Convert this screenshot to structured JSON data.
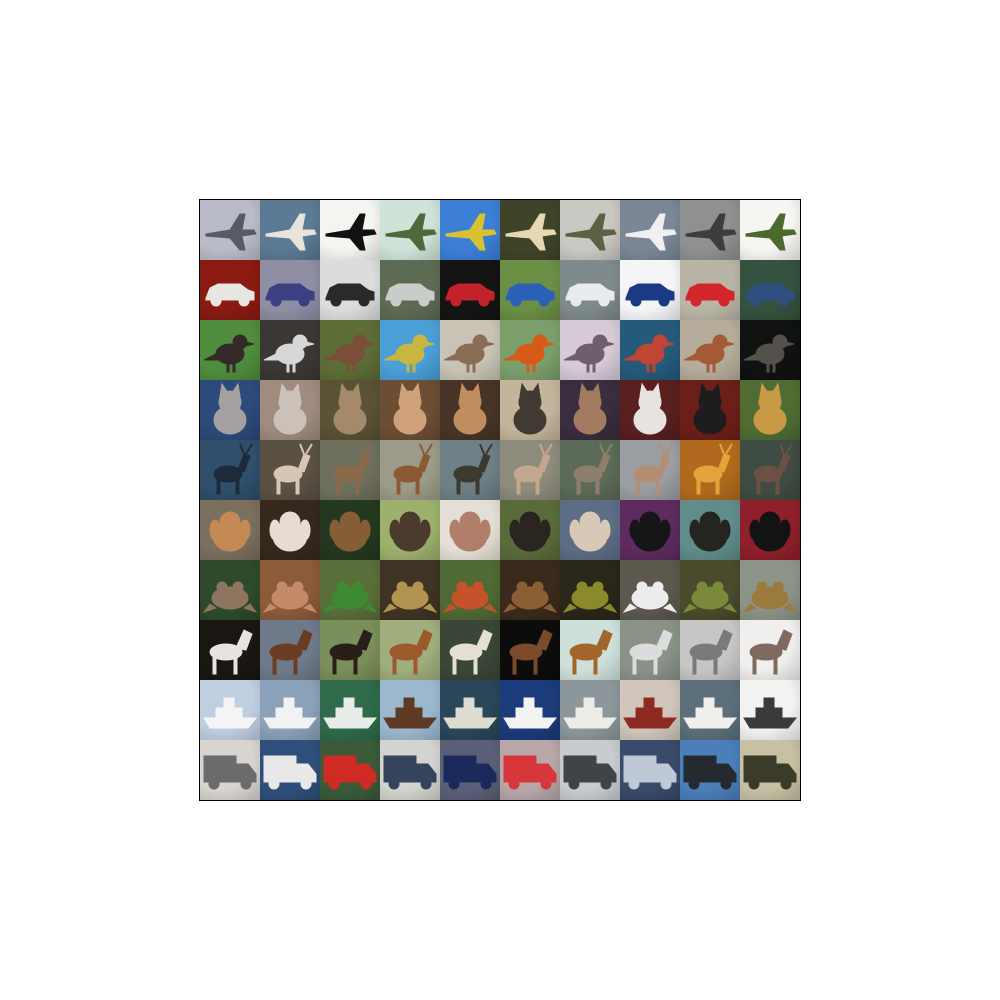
{
  "mosaic": {
    "rows": [
      {
        "label": "airplane",
        "tiles": [
          {
            "bg": "#b9bcc8",
            "fg": "#5a5a62",
            "icon": "airplane-icon"
          },
          {
            "bg": "#5b7a93",
            "fg": "#e8e4da",
            "icon": "airplane-icon"
          },
          {
            "bg": "#f3f5f0",
            "fg": "#111111",
            "icon": "airplane-icon"
          },
          {
            "bg": "#cfe3d8",
            "fg": "#4f6a3a",
            "icon": "airplane-icon"
          },
          {
            "bg": "#3d7fd6",
            "fg": "#d7c331",
            "icon": "airplane-icon"
          },
          {
            "bg": "#3f4428",
            "fg": "#e6d7b5",
            "icon": "airplane-icon"
          },
          {
            "bg": "#c9c8c2",
            "fg": "#5e6046",
            "icon": "airplane-icon"
          },
          {
            "bg": "#7b8796",
            "fg": "#f0f0f0",
            "icon": "airplane-icon"
          },
          {
            "bg": "#8e9091",
            "fg": "#3c3e3e",
            "icon": "airplane-icon"
          },
          {
            "bg": "#f7f5f1",
            "fg": "#4b6a2e",
            "icon": "airplane-icon"
          }
        ]
      },
      {
        "label": "automobile",
        "tiles": [
          {
            "bg": "#8a1a12",
            "fg": "#e8e6e2",
            "icon": "car-icon"
          },
          {
            "bg": "#8e8ea4",
            "fg": "#3d3f83",
            "icon": "car-icon"
          },
          {
            "bg": "#dcdcdc",
            "fg": "#2a2a2a",
            "icon": "car-icon"
          },
          {
            "bg": "#5d6b55",
            "fg": "#c9ccc8",
            "icon": "car-icon"
          },
          {
            "bg": "#141414",
            "fg": "#c3222b",
            "icon": "car-icon"
          },
          {
            "bg": "#6b8f45",
            "fg": "#2b60b8",
            "icon": "car-icon"
          },
          {
            "bg": "#7f8a8c",
            "fg": "#e8ecf0",
            "icon": "car-icon"
          },
          {
            "bg": "#f5f5f7",
            "fg": "#1b3a84",
            "icon": "car-icon"
          },
          {
            "bg": "#b9b5a6",
            "fg": "#d3262b",
            "icon": "car-icon"
          },
          {
            "bg": "#35523e",
            "fg": "#2f4f7e",
            "icon": "car-icon"
          }
        ]
      },
      {
        "label": "bird",
        "tiles": [
          {
            "bg": "#4f8d3d",
            "fg": "#352a29",
            "icon": "bird-icon"
          },
          {
            "bg": "#3b3734",
            "fg": "#d7d7d7",
            "icon": "bird-icon"
          },
          {
            "bg": "#5d6d36",
            "fg": "#7a4e39",
            "icon": "bird-icon"
          },
          {
            "bg": "#4a9fd7",
            "fg": "#c8b640",
            "icon": "bird-icon"
          },
          {
            "bg": "#c9c3b5",
            "fg": "#8a6d55",
            "icon": "bird-icon"
          },
          {
            "bg": "#7b9f6b",
            "fg": "#d75a18",
            "icon": "bird-icon"
          },
          {
            "bg": "#d6c9d8",
            "fg": "#6f5f6e",
            "icon": "bird-icon"
          },
          {
            "bg": "#265a7b",
            "fg": "#bf4535",
            "icon": "bird-icon"
          },
          {
            "bg": "#b5ac9b",
            "fg": "#a45a34",
            "icon": "bird-icon"
          },
          {
            "bg": "#0f1210",
            "fg": "#54504a",
            "icon": "bird-icon"
          }
        ]
      },
      {
        "label": "cat",
        "tiles": [
          {
            "bg": "#2c4a7a",
            "fg": "#a5a1a0",
            "icon": "cat-icon"
          },
          {
            "bg": "#9f8c7e",
            "fg": "#ccc1b9",
            "icon": "cat-icon"
          },
          {
            "bg": "#5a5235",
            "fg": "#a48a6b",
            "icon": "cat-icon"
          },
          {
            "bg": "#6b4e33",
            "fg": "#d0a27a",
            "icon": "cat-icon"
          },
          {
            "bg": "#473426",
            "fg": "#c08d5f",
            "icon": "cat-icon"
          },
          {
            "bg": "#c4b49c",
            "fg": "#413a33",
            "icon": "cat-icon"
          },
          {
            "bg": "#3a2d3e",
            "fg": "#a37b60",
            "icon": "cat-icon"
          },
          {
            "bg": "#5a1f1f",
            "fg": "#e8e2e0",
            "icon": "cat-icon"
          },
          {
            "bg": "#6c1f19",
            "fg": "#1e1c1d",
            "icon": "cat-icon"
          },
          {
            "bg": "#4f6d33",
            "fg": "#c99a45",
            "icon": "cat-icon"
          }
        ]
      },
      {
        "label": "deer",
        "tiles": [
          {
            "bg": "#2f4f6c",
            "fg": "#1c2a3b",
            "icon": "deer-icon"
          },
          {
            "bg": "#5a5144",
            "fg": "#d8c6b4",
            "icon": "deer-icon"
          },
          {
            "bg": "#6f6f5d",
            "fg": "#8b6a4c",
            "icon": "deer-icon"
          },
          {
            "bg": "#9c9a88",
            "fg": "#8a5b33",
            "icon": "deer-icon"
          },
          {
            "bg": "#6e7f86",
            "fg": "#3c3a2f",
            "icon": "deer-icon"
          },
          {
            "bg": "#8d8b7c",
            "fg": "#c4a68e",
            "icon": "deer-icon"
          },
          {
            "bg": "#5c6a58",
            "fg": "#8e7e6c",
            "icon": "deer-icon"
          },
          {
            "bg": "#9a9da1",
            "fg": "#b48d72",
            "icon": "deer-icon"
          },
          {
            "bg": "#b16a1d",
            "fg": "#e1a53c",
            "icon": "deer-icon"
          },
          {
            "bg": "#3f4c43",
            "fg": "#6a5143",
            "icon": "deer-icon"
          }
        ]
      },
      {
        "label": "dog",
        "tiles": [
          {
            "bg": "#7b6f5e",
            "fg": "#c48a56",
            "icon": "dog-icon"
          },
          {
            "bg": "#36281d",
            "fg": "#e8dcd2",
            "icon": "dog-icon"
          },
          {
            "bg": "#243820",
            "fg": "#865e35",
            "icon": "dog-icon"
          },
          {
            "bg": "#9cb16d",
            "fg": "#4b3b2c",
            "icon": "dog-icon"
          },
          {
            "bg": "#e4dfd6",
            "fg": "#b07e69",
            "icon": "dog-icon"
          },
          {
            "bg": "#5a6b3a",
            "fg": "#2b2520",
            "icon": "dog-icon"
          },
          {
            "bg": "#5d6d85",
            "fg": "#d8c8b8",
            "icon": "dog-icon"
          },
          {
            "bg": "#5d2b5d",
            "fg": "#161618",
            "icon": "dog-icon"
          },
          {
            "bg": "#5f8d8a",
            "fg": "#252520",
            "icon": "dog-icon"
          },
          {
            "bg": "#8f1f2a",
            "fg": "#111413",
            "icon": "dog-icon"
          }
        ]
      },
      {
        "label": "frog",
        "tiles": [
          {
            "bg": "#2e4a2a",
            "fg": "#8d7560",
            "icon": "frog-icon"
          },
          {
            "bg": "#8d5a3a",
            "fg": "#c38b6a",
            "icon": "frog-icon"
          },
          {
            "bg": "#5a6e3a",
            "fg": "#3e8a32",
            "icon": "frog-icon"
          },
          {
            "bg": "#3f3423",
            "fg": "#b39350",
            "icon": "frog-icon"
          },
          {
            "bg": "#4f6a33",
            "fg": "#c4522a",
            "icon": "frog-icon"
          },
          {
            "bg": "#3b2a1c",
            "fg": "#8a5f33",
            "icon": "frog-icon"
          },
          {
            "bg": "#2a2619",
            "fg": "#8a8a2c",
            "icon": "frog-icon"
          },
          {
            "bg": "#5c584d",
            "fg": "#ececec",
            "icon": "frog-icon"
          },
          {
            "bg": "#4a4a2c",
            "fg": "#7a8a3a",
            "icon": "frog-icon"
          },
          {
            "bg": "#8c9488",
            "fg": "#9a7b3b",
            "icon": "frog-icon"
          }
        ]
      },
      {
        "label": "horse",
        "tiles": [
          {
            "bg": "#1a1612",
            "fg": "#e6e4e0",
            "icon": "horse-icon"
          },
          {
            "bg": "#6e7a8a",
            "fg": "#6a3d22",
            "icon": "horse-icon"
          },
          {
            "bg": "#7a8f5a",
            "fg": "#2a1e1a",
            "icon": "horse-icon"
          },
          {
            "bg": "#9fae7c",
            "fg": "#9c5a2c",
            "icon": "horse-icon"
          },
          {
            "bg": "#3a4638",
            "fg": "#e6e0d4",
            "icon": "horse-icon"
          },
          {
            "bg": "#0c0c0c",
            "fg": "#7a4a2a",
            "icon": "horse-icon"
          },
          {
            "bg": "#cfe0da",
            "fg": "#a0662c",
            "icon": "horse-icon"
          },
          {
            "bg": "#8a9288",
            "fg": "#dcdcdc",
            "icon": "horse-icon"
          },
          {
            "bg": "#c6c6c4",
            "fg": "#7a7a7a",
            "icon": "horse-icon"
          },
          {
            "bg": "#f0efed",
            "fg": "#7e6a5f",
            "icon": "horse-icon"
          }
        ]
      },
      {
        "label": "ship",
        "tiles": [
          {
            "bg": "#bfcfe2",
            "fg": "#f4f4f4",
            "icon": "ship-icon"
          },
          {
            "bg": "#8aa1b9",
            "fg": "#f0f2f4",
            "icon": "ship-icon"
          },
          {
            "bg": "#2f6a4a",
            "fg": "#e8ece9",
            "icon": "ship-icon"
          },
          {
            "bg": "#9cb8cf",
            "fg": "#5e3a25",
            "icon": "ship-icon"
          },
          {
            "bg": "#2a4658",
            "fg": "#dedcd0",
            "icon": "ship-icon"
          },
          {
            "bg": "#1b3b7a",
            "fg": "#f3f3f4",
            "icon": "ship-icon"
          },
          {
            "bg": "#8c979b",
            "fg": "#ecece9",
            "icon": "ship-icon"
          },
          {
            "bg": "#d0c6bb",
            "fg": "#8f2a22",
            "icon": "ship-icon"
          },
          {
            "bg": "#5b6f7a",
            "fg": "#f1efec",
            "icon": "ship-icon"
          },
          {
            "bg": "#f2f2f0",
            "fg": "#3a3a3a",
            "icon": "ship-icon"
          }
        ]
      },
      {
        "label": "truck",
        "tiles": [
          {
            "bg": "#d8d4cf",
            "fg": "#6b6b6b",
            "icon": "truck-icon"
          },
          {
            "bg": "#2f4f7a",
            "fg": "#e8e8e8",
            "icon": "truck-icon"
          },
          {
            "bg": "#3a5a3a",
            "fg": "#d02a24",
            "icon": "truck-icon"
          },
          {
            "bg": "#d3d3cf",
            "fg": "#33445b",
            "icon": "truck-icon"
          },
          {
            "bg": "#5b6078",
            "fg": "#1b2a5a",
            "icon": "truck-icon"
          },
          {
            "bg": "#b7a7a9",
            "fg": "#d7373a",
            "icon": "truck-icon"
          },
          {
            "bg": "#c9cccf",
            "fg": "#414446",
            "icon": "truck-icon"
          },
          {
            "bg": "#3a4a6a",
            "fg": "#bfc8d6",
            "icon": "truck-icon"
          },
          {
            "bg": "#4a7fba",
            "fg": "#252a30",
            "icon": "truck-icon"
          },
          {
            "bg": "#c7c0a3",
            "fg": "#3a3b28",
            "icon": "truck-icon"
          }
        ]
      }
    ]
  }
}
